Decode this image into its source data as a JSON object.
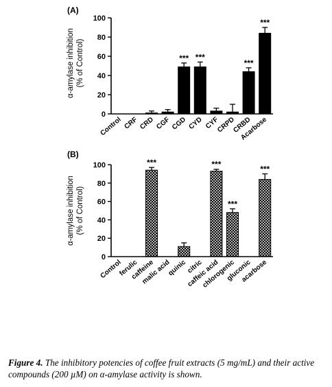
{
  "chart_data": [
    {
      "type": "bar",
      "panel_label": "(A)",
      "ylabel_line1": "α-amylase inhibition",
      "ylabel_line2": "(% of Control)",
      "ylim": [
        0,
        100
      ],
      "yticks": [
        0,
        20,
        40,
        60,
        80,
        100
      ],
      "categories": [
        "Control",
        "CRF",
        "CRD",
        "CGF",
        "CGD",
        "CYD",
        "CYF",
        "CRPD",
        "CRBD",
        "Acarbose"
      ],
      "values": [
        0,
        0,
        1,
        2,
        49,
        49,
        3,
        2,
        44,
        84
      ],
      "errors": [
        0,
        0,
        2,
        2.5,
        4,
        5,
        3,
        8,
        4,
        6
      ],
      "significance": [
        "",
        "",
        "",
        "",
        "***",
        "***",
        "",
        "",
        "***",
        "***"
      ],
      "bar_fill": "solid",
      "bar_color": "#000000"
    },
    {
      "type": "bar",
      "panel_label": "(B)",
      "ylabel_line1": "α-amylase inhibition",
      "ylabel_line2": "(% of Control)",
      "ylim": [
        0,
        100
      ],
      "yticks": [
        0,
        20,
        40,
        60,
        80,
        100
      ],
      "categories": [
        "Control",
        "ferulic",
        "caffeine",
        "malic acid",
        "quinic",
        "citric",
        "caffeic acid",
        "chlorogenic",
        "gluconic",
        "acarbose"
      ],
      "values": [
        0,
        0,
        94,
        0,
        11,
        0,
        93,
        48,
        0,
        84
      ],
      "errors": [
        0,
        0,
        3,
        0,
        4,
        0,
        2,
        4,
        0,
        6
      ],
      "significance": [
        "",
        "",
        "***",
        "",
        "",
        "",
        "***",
        "***",
        "",
        "***"
      ],
      "bar_fill": "crosshatch",
      "bar_color": "#000000"
    }
  ],
  "caption": {
    "label": "Figure 4.",
    "text": " The inhibitory potencies of coffee fruit extracts (5 mg/mL) and their active compounds (200 µM) on α-amylase activity is shown."
  }
}
